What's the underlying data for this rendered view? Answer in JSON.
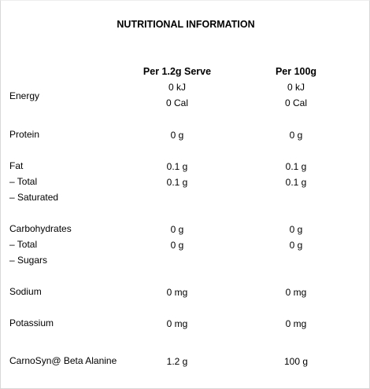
{
  "title": "NUTRITIONAL INFORMATION",
  "columns": {
    "per_serve": "Per 1.2g Serve",
    "per_100g": "Per 100g"
  },
  "energy": {
    "label": "Energy",
    "serve_kj": "0 kJ",
    "serve_cal": "0 Cal",
    "g100_kj": "0 kJ",
    "g100_cal": "0 Cal"
  },
  "protein": {
    "label": "Protein",
    "serve": "0 g",
    "g100": "0 g"
  },
  "fat": {
    "label": "Fat",
    "sub_total": "– Total",
    "sub_saturated": "– Saturated",
    "serve_total": "0.1 g",
    "serve_saturated": "0.1 g",
    "g100_total": "0.1 g",
    "g100_saturated": "0.1 g"
  },
  "carbohydrates": {
    "label": "Carbohydrates",
    "sub_total": "– Total",
    "sub_sugars": "– Sugars",
    "serve_total": "0 g",
    "serve_sugars": "0 g",
    "g100_total": "0 g",
    "g100_sugars": "0 g"
  },
  "sodium": {
    "label": "Sodium",
    "serve": "0 mg",
    "g100": "0 mg"
  },
  "potassium": {
    "label": "Potassium",
    "serve": "0 mg",
    "g100": "0 mg"
  },
  "carnosyn": {
    "label": "CarnoSyn@ Beta Alanine",
    "serve": "1.2 g",
    "g100": "100 g"
  }
}
